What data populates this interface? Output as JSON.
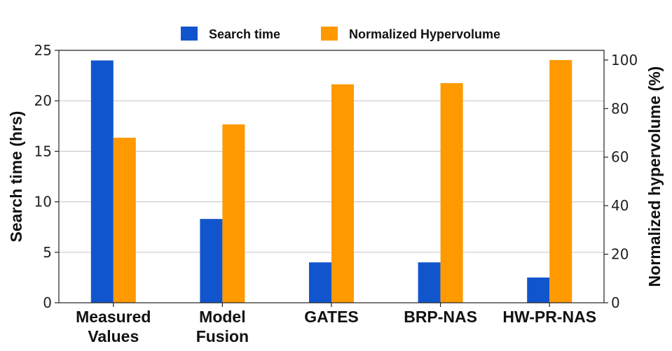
{
  "chart_data": {
    "type": "bar",
    "categories": [
      [
        "Measured",
        "Values"
      ],
      [
        "Model",
        "Fusion"
      ],
      [
        "GATES"
      ],
      [
        "BRP-NAS"
      ],
      [
        "HW-PR-NAS"
      ]
    ],
    "series": [
      {
        "name": "Search time",
        "axis": "left",
        "color": "#1155cc",
        "values": [
          24,
          8.3,
          4,
          4,
          2.5
        ]
      },
      {
        "name": "Normalized Hypervolume",
        "axis": "right",
        "color": "#ff9900",
        "values": [
          68,
          73.5,
          90,
          90.5,
          100
        ]
      }
    ],
    "ylabel": "Search time (hrs)",
    "ylabel_right": "Normalized hypervolume (%)",
    "ylim": [
      0,
      25
    ],
    "ylim_right": [
      0,
      104
    ],
    "yticks": [
      0,
      5,
      10,
      15,
      20,
      25
    ],
    "yticks_right": [
      0,
      20,
      40,
      60,
      80,
      100
    ],
    "grid": true,
    "legend_position": "top-center"
  }
}
